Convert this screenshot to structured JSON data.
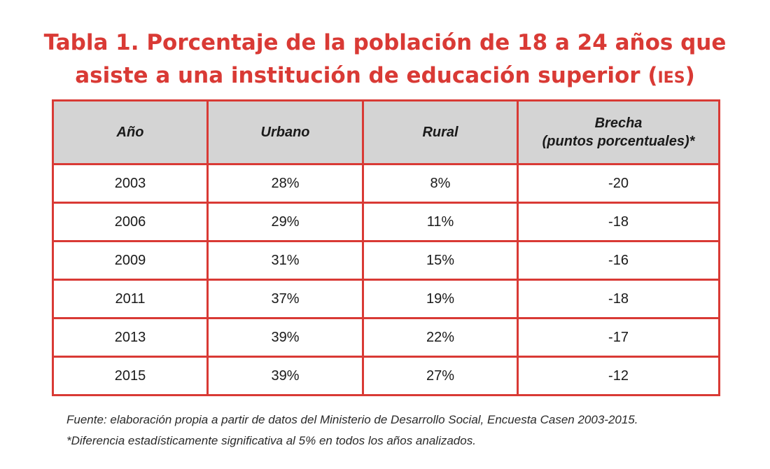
{
  "title": {
    "line1": "Tabla 1. Porcentaje de la población de 18 a 24 años que",
    "line2_prefix": "asiste a una institución de educación superior (",
    "line2_abbr": "IES",
    "line2_suffix": ")"
  },
  "table": {
    "headers": {
      "year": "Año",
      "urban": "Urbano",
      "rural": "Rural",
      "gap_line1": "Brecha",
      "gap_line2": "(puntos porcentuales)*"
    },
    "rows": [
      {
        "year": "2003",
        "urban": "28%",
        "rural": "8%",
        "gap": "-20"
      },
      {
        "year": "2006",
        "urban": "29%",
        "rural": "11%",
        "gap": "-18"
      },
      {
        "year": "2009",
        "urban": "31%",
        "rural": "15%",
        "gap": "-16"
      },
      {
        "year": "2011",
        "urban": "37%",
        "rural": "19%",
        "gap": "-18"
      },
      {
        "year": "2013",
        "urban": "39%",
        "rural": "22%",
        "gap": "-17"
      },
      {
        "year": "2015",
        "urban": "39%",
        "rural": "27%",
        "gap": "-12"
      }
    ]
  },
  "notes": {
    "source": "Fuente: elaboración propia a partir de datos del Ministerio de Desarrollo Social, Encuesta Casen 2003-2015.",
    "footnote": "*Diferencia estadísticamente significativa al 5% en todos los años analizados."
  },
  "colors": {
    "accent": "#d93a35",
    "header_bg": "#d4d4d4"
  }
}
